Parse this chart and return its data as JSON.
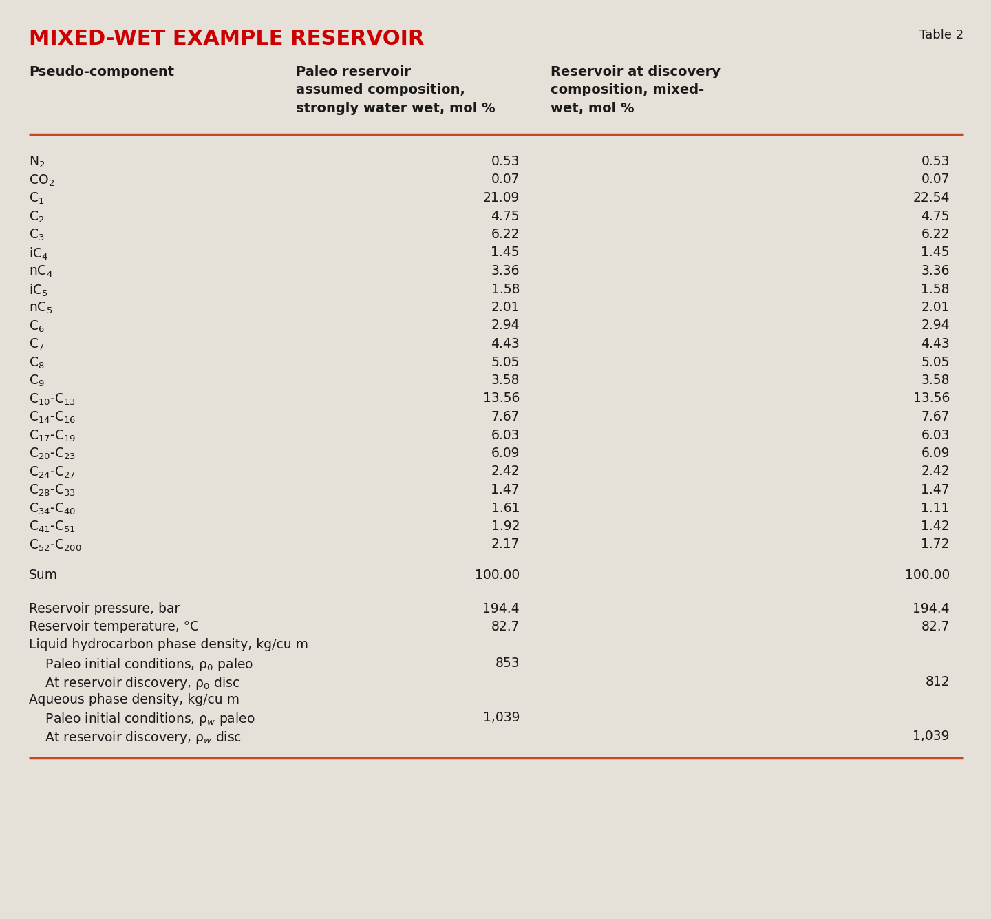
{
  "title": "MIXED-WET EXAMPLE RESERVOIR",
  "table_label": "Table 2",
  "bg_color": "#e5e0d8",
  "title_color": "#cc0000",
  "header_color": "#1a1a1a",
  "body_color": "#1a1a1a",
  "separator_color": "#cc4422",
  "col_headers": [
    "Pseudo-component",
    "Paleo reservoir\nassumed composition,\nstrongly water wet, mol %",
    "Reservoir at discovery\ncomposition, mixed-\nwet, mol %"
  ],
  "rows": [
    {
      "label": "N$_2$",
      "col1": "0.53",
      "col2": "0.53"
    },
    {
      "label": "CO$_2$",
      "col1": "0.07",
      "col2": "0.07"
    },
    {
      "label": "C$_1$",
      "col1": "21.09",
      "col2": "22.54"
    },
    {
      "label": "C$_2$",
      "col1": "4.75",
      "col2": "4.75"
    },
    {
      "label": "C$_3$",
      "col1": "6.22",
      "col2": "6.22"
    },
    {
      "label": "iC$_4$",
      "col1": "1.45",
      "col2": "1.45"
    },
    {
      "label": "nC$_4$",
      "col1": "3.36",
      "col2": "3.36"
    },
    {
      "label": "iC$_5$",
      "col1": "1.58",
      "col2": "1.58"
    },
    {
      "label": "nC$_5$",
      "col1": "2.01",
      "col2": "2.01"
    },
    {
      "label": "C$_6$",
      "col1": "2.94",
      "col2": "2.94"
    },
    {
      "label": "C$_7$",
      "col1": "4.43",
      "col2": "4.43"
    },
    {
      "label": "C$_8$",
      "col1": "5.05",
      "col2": "5.05"
    },
    {
      "label": "C$_9$",
      "col1": "3.58",
      "col2": "3.58"
    },
    {
      "label": "C$_{10}$-C$_{13}$",
      "col1": "13.56",
      "col2": "13.56"
    },
    {
      "label": "C$_{14}$-C$_{16}$",
      "col1": "7.67",
      "col2": "7.67"
    },
    {
      "label": "C$_{17}$-C$_{19}$",
      "col1": "6.03",
      "col2": "6.03"
    },
    {
      "label": "C$_{20}$-C$_{23}$",
      "col1": "6.09",
      "col2": "6.09"
    },
    {
      "label": "C$_{24}$-C$_{27}$",
      "col1": "2.42",
      "col2": "2.42"
    },
    {
      "label": "C$_{28}$-C$_{33}$",
      "col1": "1.47",
      "col2": "1.47"
    },
    {
      "label": "C$_{34}$-C$_{40}$",
      "col1": "1.61",
      "col2": "1.11"
    },
    {
      "label": "C$_{41}$-C$_{51}$",
      "col1": "1.92",
      "col2": "1.42"
    },
    {
      "label": "C$_{52}$-C$_{200}$",
      "col1": "2.17",
      "col2": "1.72"
    }
  ],
  "sum_row": {
    "label": "Sum",
    "col1": "100.00",
    "col2": "100.00"
  },
  "extra_rows": [
    {
      "label": "Reservoir pressure, bar",
      "col1": "194.4",
      "col2": "194.4",
      "indent": 0
    },
    {
      "label": "Reservoir temperature, °C",
      "col1": "82.7",
      "col2": "82.7",
      "indent": 0
    },
    {
      "label": "Liquid hydrocarbon phase density, kg/cu m",
      "col1": "",
      "col2": "",
      "indent": 0
    },
    {
      "label": "    Paleo initial conditions, ρ$_0$ paleo",
      "col1": "853",
      "col2": "",
      "indent": 1
    },
    {
      "label": "    At reservoir discovery, ρ$_0$ disc",
      "col1": "",
      "col2": "812",
      "indent": 1
    },
    {
      "label": "Aqueous phase density, kg/cu m",
      "col1": "",
      "col2": "",
      "indent": 0
    },
    {
      "label": "    Paleo initial conditions, ρ$_w$ paleo",
      "col1": "1,039",
      "col2": "",
      "indent": 1
    },
    {
      "label": "    At reservoir discovery, ρ$_w$ disc",
      "col1": "",
      "col2": "1,039",
      "indent": 1
    }
  ],
  "title_fontsize": 22,
  "header_fontsize": 14,
  "body_fontsize": 13.5,
  "label_fontsize": 14,
  "table_label_fontsize": 13
}
